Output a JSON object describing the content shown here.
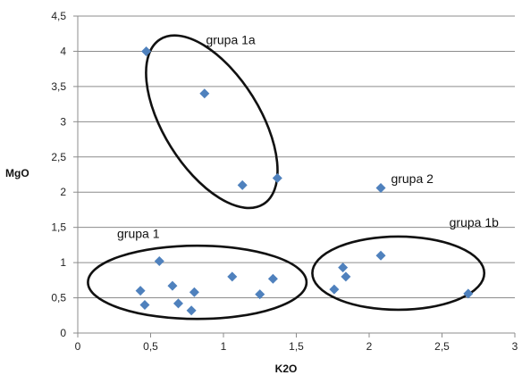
{
  "chart_data": {
    "type": "scatter",
    "xlabel": "K2O",
    "ylabel": "MgO",
    "xlim": [
      0,
      3
    ],
    "ylim": [
      0,
      4.5
    ],
    "x_ticks": [
      "0",
      "0,5",
      "1",
      "1,5",
      "2",
      "2,5",
      "3"
    ],
    "y_ticks": [
      "0",
      "0,5",
      "1",
      "1,5",
      "2",
      "2,5",
      "3",
      "3,5",
      "4",
      "4,5"
    ],
    "grid": "horizontal",
    "marker": "diamond",
    "marker_color": "#4f81bd",
    "series": [
      {
        "points": [
          {
            "x": 0.47,
            "y": 4.0
          },
          {
            "x": 0.87,
            "y": 3.4
          },
          {
            "x": 1.13,
            "y": 2.1
          },
          {
            "x": 1.37,
            "y": 2.2
          },
          {
            "x": 2.08,
            "y": 2.06
          },
          {
            "x": 0.56,
            "y": 1.02
          },
          {
            "x": 0.43,
            "y": 0.6
          },
          {
            "x": 0.46,
            "y": 0.4
          },
          {
            "x": 0.65,
            "y": 0.67
          },
          {
            "x": 0.69,
            "y": 0.42
          },
          {
            "x": 0.78,
            "y": 0.32
          },
          {
            "x": 0.8,
            "y": 0.58
          },
          {
            "x": 1.06,
            "y": 0.8
          },
          {
            "x": 1.25,
            "y": 0.55
          },
          {
            "x": 1.34,
            "y": 0.77
          },
          {
            "x": 1.76,
            "y": 0.62
          },
          {
            "x": 1.82,
            "y": 0.93
          },
          {
            "x": 1.84,
            "y": 0.8
          },
          {
            "x": 2.08,
            "y": 1.1
          },
          {
            "x": 2.68,
            "y": 0.56
          }
        ]
      }
    ],
    "annotations": [
      {
        "text": "grupa 1a",
        "x": 0.88,
        "y": 4.1
      },
      {
        "text": "grupa 2",
        "x": 2.15,
        "y": 2.13
      },
      {
        "text": "grupa 1",
        "x": 0.27,
        "y": 1.35
      },
      {
        "text": "grupa 1b",
        "x": 2.55,
        "y": 1.51
      }
    ],
    "group_ellipses": [
      {
        "cx": 0.92,
        "cy": 3.0,
        "rx": 0.33,
        "ry": 1.38,
        "angle": -32
      },
      {
        "cx": 0.82,
        "cy": 0.72,
        "rx": 0.75,
        "ry": 0.52,
        "angle": 0
      },
      {
        "cx": 2.2,
        "cy": 0.85,
        "rx": 0.59,
        "ry": 0.52,
        "angle": 0
      }
    ]
  }
}
